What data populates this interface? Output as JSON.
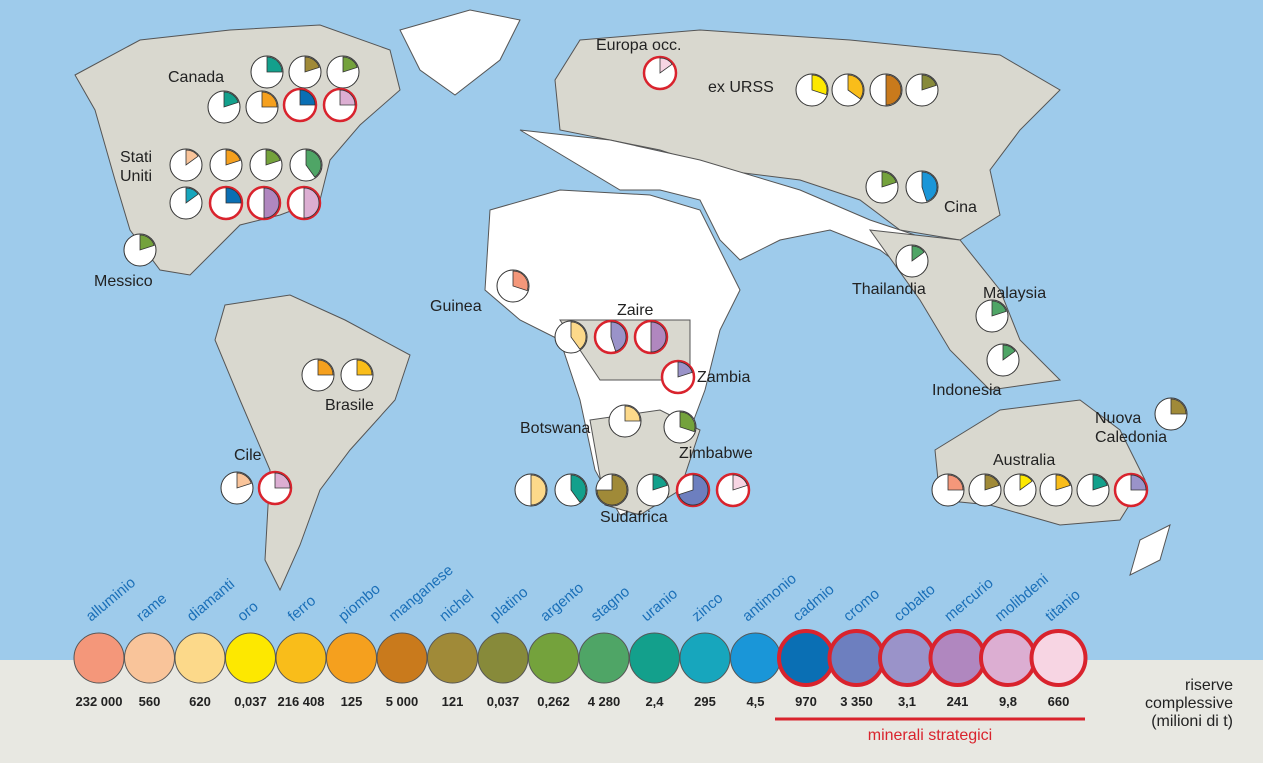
{
  "regions": [
    {
      "label": [
        "Canada"
      ],
      "pies": [
        {
          "mineral": "uranio",
          "share": 25
        },
        {
          "mineral": "nichel",
          "share": 20
        },
        {
          "mineral": "argento",
          "share": 20
        },
        {
          "mineral": "uranio",
          "share": 20
        },
        {
          "mineral": "piombo",
          "share": 25
        },
        {
          "mineral": "cadmio",
          "share": 25
        },
        {
          "mineral": "molibdeni",
          "share": 25
        }
      ]
    },
    {
      "label": [
        "Europa occ."
      ],
      "pies": [
        {
          "mineral": "titanio",
          "share": 15
        }
      ]
    },
    {
      "label": [
        "ex URSS"
      ],
      "pies": [
        {
          "mineral": "oro",
          "share": 30
        },
        {
          "mineral": "ferro",
          "share": 35
        },
        {
          "mineral": "manganese",
          "share": 50
        },
        {
          "mineral": "platino",
          "share": 20
        }
      ]
    },
    {
      "label": [
        "Stati",
        "Uniti"
      ],
      "pies": [
        {
          "mineral": "rame",
          "share": 15
        },
        {
          "mineral": "piombo",
          "share": 20
        },
        {
          "mineral": "argento",
          "share": 20
        },
        {
          "mineral": "stagno",
          "share": 40
        },
        {
          "mineral": "zinco",
          "share": 15
        },
        {
          "mineral": "cadmio",
          "share": 25
        },
        {
          "mineral": "mercurio",
          "share": 50
        },
        {
          "mineral": "molibdeni",
          "share": 50
        }
      ]
    },
    {
      "label": [
        "Messico"
      ],
      "pies": [
        {
          "mineral": "argento",
          "share": 20
        }
      ]
    },
    {
      "label": [
        "Cina"
      ],
      "pies": [
        {
          "mineral": "argento",
          "share": 20
        },
        {
          "mineral": "antimonio",
          "share": 45
        }
      ]
    },
    {
      "label": [
        "Thailandia"
      ],
      "pies": [
        {
          "mineral": "stagno",
          "share": 15
        }
      ]
    },
    {
      "label": [
        "Malaysia"
      ],
      "pies": [
        {
          "mineral": "stagno",
          "share": 20
        }
      ]
    },
    {
      "label": [
        "Indonesia"
      ],
      "pies": [
        {
          "mineral": "stagno",
          "share": 15
        }
      ]
    },
    {
      "label": [
        "Guinea"
      ],
      "pies": [
        {
          "mineral": "alluminio",
          "share": 30
        }
      ]
    },
    {
      "label": [
        "Zaire"
      ],
      "pies": [
        {
          "mineral": "diamanti",
          "share": 40
        },
        {
          "mineral": "cobalto",
          "share": 45
        },
        {
          "mineral": "mercurio",
          "share": 50
        }
      ]
    },
    {
      "label": [
        "Zambia"
      ],
      "pies": [
        {
          "mineral": "cobalto",
          "share": 20
        }
      ]
    },
    {
      "label": [
        "Botswana"
      ],
      "pies": [
        {
          "mineral": "diamanti",
          "share": 25
        }
      ]
    },
    {
      "label": [
        "Zimbabwe"
      ],
      "pies": [
        {
          "mineral": "argento",
          "share": 30
        }
      ]
    },
    {
      "label": [
        "Sudafrica"
      ],
      "pies": [
        {
          "mineral": "diamanti",
          "share": 50
        },
        {
          "mineral": "uranio",
          "share": 40
        },
        {
          "mineral": "nichel",
          "share": 75
        },
        {
          "mineral": "uranio",
          "share": 20
        },
        {
          "mineral": "cromo",
          "share": 70
        },
        {
          "mineral": "titanio",
          "share": 20
        }
      ]
    },
    {
      "label": [
        "Cile"
      ],
      "pies": [
        {
          "mineral": "rame",
          "share": 20
        },
        {
          "mineral": "molibdeni",
          "share": 25
        }
      ]
    },
    {
      "label": [
        "Brasile"
      ],
      "pies": [
        {
          "mineral": "piombo",
          "share": 25
        },
        {
          "mineral": "ferro",
          "share": 25
        }
      ]
    },
    {
      "label": [
        "Nuova",
        "Caledonia"
      ],
      "pies": [
        {
          "mineral": "nichel",
          "share": 25
        }
      ]
    },
    {
      "label": [
        "Australia"
      ],
      "pies": [
        {
          "mineral": "alluminio",
          "share": 25
        },
        {
          "mineral": "nichel",
          "share": 20
        },
        {
          "mineral": "oro",
          "share": 15
        },
        {
          "mineral": "ferro",
          "share": 20
        },
        {
          "mineral": "uranio",
          "share": 20
        },
        {
          "mineral": "cobalto",
          "share": 25
        }
      ]
    }
  ],
  "minerals": [
    {
      "name": "alluminio",
      "color": "#f4977a",
      "reserve": "232 000",
      "strategic": false
    },
    {
      "name": "rame",
      "color": "#f9c49a",
      "reserve": "560",
      "strategic": false
    },
    {
      "name": "diamanti",
      "color": "#fcd98a",
      "reserve": "620",
      "strategic": false
    },
    {
      "name": "oro",
      "color": "#fde800",
      "reserve": "0,037",
      "strategic": false
    },
    {
      "name": "ferro",
      "color": "#f9bd1a",
      "reserve": "216 408",
      "strategic": false
    },
    {
      "name": "piombo",
      "color": "#f5a01e",
      "reserve": "125",
      "strategic": false
    },
    {
      "name": "manganese",
      "color": "#c97a1c",
      "reserve": "5 000",
      "strategic": false
    },
    {
      "name": "nichel",
      "color": "#a08a38",
      "reserve": "121",
      "strategic": false
    },
    {
      "name": "platino",
      "color": "#878a3a",
      "reserve": "0,037",
      "strategic": false
    },
    {
      "name": "argento",
      "color": "#74a23c",
      "reserve": "0,262",
      "strategic": false
    },
    {
      "name": "stagno",
      "color": "#4fa566",
      "reserve": "4 280",
      "strategic": false
    },
    {
      "name": "uranio",
      "color": "#13a08c",
      "reserve": "2,4",
      "strategic": false
    },
    {
      "name": "zinco",
      "color": "#17a6bd",
      "reserve": "295",
      "strategic": false
    },
    {
      "name": "antimonio",
      "color": "#1a96d8",
      "reserve": "4,5",
      "strategic": false
    },
    {
      "name": "cadmio",
      "color": "#0a6fb4",
      "reserve": "970",
      "strategic": true
    },
    {
      "name": "cromo",
      "color": "#6d7fbf",
      "reserve": "3 350",
      "strategic": true
    },
    {
      "name": "cobalto",
      "color": "#9a93c9",
      "reserve": "3,1",
      "strategic": true
    },
    {
      "name": "mercurio",
      "color": "#b087bf",
      "reserve": "241",
      "strategic": true
    },
    {
      "name": "molibdeni",
      "color": "#dcaed2",
      "reserve": "9,8",
      "strategic": true
    },
    {
      "name": "titanio",
      "color": "#f7d5e3",
      "reserve": "660",
      "strategic": true
    }
  ],
  "reserves_caption": [
    "riserve",
    "complessive",
    "(milioni di t)"
  ],
  "strategic_caption": "minerali strategici"
}
